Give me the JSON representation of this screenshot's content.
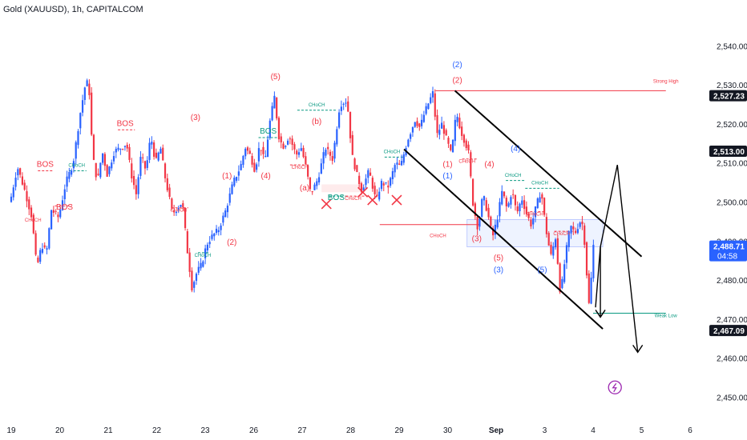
{
  "header": {
    "title": "Gold (XAUUSD), 1h, CAPITALCOM"
  },
  "chart_data": {
    "type": "candlestick",
    "symbol": "Gold (XAUUSD)",
    "interval": "1h",
    "source": "CAPITALCOM",
    "ylim": [
      2446,
      2546
    ],
    "y_ticks": [
      2450,
      2460,
      2470,
      2480,
      2490,
      2500,
      2510,
      2520,
      2530,
      2540
    ],
    "y_tick_labels": [
      "2,450.00",
      "2,460.00",
      "2,470.00",
      "2,480.00",
      "2,490.00",
      "2,500.00",
      "2,510.00",
      "2,520.00",
      "2,530.00",
      "2,540.00"
    ],
    "x_tick_labels": [
      {
        "label": "19",
        "x": 0.0
      },
      {
        "label": "20",
        "x": 1.0
      },
      {
        "label": "21",
        "x": 2.0
      },
      {
        "label": "22",
        "x": 3.0
      },
      {
        "label": "23",
        "x": 4.0
      },
      {
        "label": "26",
        "x": 5.0
      },
      {
        "label": "27",
        "x": 6.0
      },
      {
        "label": "28",
        "x": 7.0
      },
      {
        "label": "29",
        "x": 8.0
      },
      {
        "label": "30",
        "x": 9.0
      },
      {
        "label": "Sep",
        "x": 10.0
      },
      {
        "label": "3",
        "x": 11.0
      },
      {
        "label": "4",
        "x": 12.0
      },
      {
        "label": "5",
        "x": 13.0
      },
      {
        "label": "6",
        "x": 14.0
      }
    ],
    "price_badges": [
      {
        "label": "2,527.23",
        "price": 2527.23,
        "style": "dark"
      },
      {
        "label": "2,513.00",
        "price": 2513.0,
        "style": "dark"
      },
      {
        "label": "2,488.71",
        "price": 2488.71,
        "style": "blue",
        "countdown": "04:58"
      },
      {
        "label": "2,467.09",
        "price": 2467.09,
        "style": "dark"
      }
    ],
    "colors": {
      "up": "#2962ff",
      "down": "#f23645",
      "structure": "#f23645",
      "bos": "#089981",
      "channel": "#000000"
    },
    "price_path": [
      [
        0.0,
        2500
      ],
      [
        0.15,
        2509
      ],
      [
        0.3,
        2503
      ],
      [
        0.45,
        2496
      ],
      [
        0.55,
        2483
      ],
      [
        0.65,
        2489
      ],
      [
        0.75,
        2487
      ],
      [
        0.85,
        2498
      ],
      [
        1.0,
        2496
      ],
      [
        1.15,
        2505
      ],
      [
        1.3,
        2510
      ],
      [
        1.45,
        2523
      ],
      [
        1.55,
        2530
      ],
      [
        1.62,
        2531
      ],
      [
        1.7,
        2512
      ],
      [
        1.8,
        2505
      ],
      [
        1.9,
        2513
      ],
      [
        2.0,
        2507
      ],
      [
        2.15,
        2513
      ],
      [
        2.3,
        2514
      ],
      [
        2.4,
        2515
      ],
      [
        2.5,
        2507
      ],
      [
        2.6,
        2502
      ],
      [
        2.7,
        2512
      ],
      [
        2.8,
        2508
      ],
      [
        2.9,
        2517
      ],
      [
        3.0,
        2510
      ],
      [
        3.1,
        2514
      ],
      [
        3.2,
        2506
      ],
      [
        3.35,
        2497
      ],
      [
        3.55,
        2500
      ],
      [
        3.65,
        2488
      ],
      [
        3.75,
        2478
      ],
      [
        3.85,
        2482
      ],
      [
        3.95,
        2484
      ],
      [
        4.05,
        2489
      ],
      [
        4.15,
        2491
      ],
      [
        4.3,
        2493
      ],
      [
        4.45,
        2498
      ],
      [
        4.6,
        2505
      ],
      [
        4.75,
        2509
      ],
      [
        4.85,
        2514
      ],
      [
        4.95,
        2512
      ],
      [
        5.05,
        2508
      ],
      [
        5.15,
        2515
      ],
      [
        5.25,
        2510
      ],
      [
        5.35,
        2520
      ],
      [
        5.45,
        2527
      ],
      [
        5.55,
        2516
      ],
      [
        5.65,
        2514
      ],
      [
        5.75,
        2517
      ],
      [
        5.9,
        2512
      ],
      [
        6.0,
        2514
      ],
      [
        6.1,
        2509
      ],
      [
        6.2,
        2502
      ],
      [
        6.35,
        2506
      ],
      [
        6.5,
        2514
      ],
      [
        6.65,
        2511
      ],
      [
        6.8,
        2525
      ],
      [
        6.95,
        2526
      ],
      [
        7.05,
        2512
      ],
      [
        7.15,
        2507
      ],
      [
        7.25,
        2503
      ],
      [
        7.4,
        2508
      ],
      [
        7.55,
        2500
      ],
      [
        7.65,
        2505
      ],
      [
        7.8,
        2504
      ],
      [
        7.95,
        2510
      ],
      [
        8.05,
        2509
      ],
      [
        8.2,
        2516
      ],
      [
        8.35,
        2521
      ],
      [
        8.45,
        2519
      ],
      [
        8.55,
        2523
      ],
      [
        8.65,
        2526
      ],
      [
        8.72,
        2528
      ],
      [
        8.8,
        2517
      ],
      [
        8.9,
        2520
      ],
      [
        9.0,
        2516
      ],
      [
        9.1,
        2512
      ],
      [
        9.2,
        2523
      ],
      [
        9.3,
        2518
      ],
      [
        9.45,
        2513
      ],
      [
        9.55,
        2499
      ],
      [
        9.65,
        2493
      ],
      [
        9.75,
        2502
      ],
      [
        9.85,
        2497
      ],
      [
        9.95,
        2491
      ],
      [
        10.05,
        2496
      ],
      [
        10.15,
        2503
      ],
      [
        10.25,
        2498
      ],
      [
        10.35,
        2503
      ],
      [
        10.45,
        2497
      ],
      [
        10.55,
        2501
      ],
      [
        10.65,
        2497
      ],
      [
        10.75,
        2494
      ],
      [
        10.85,
        2499
      ],
      [
        10.95,
        2503
      ],
      [
        11.05,
        2493
      ],
      [
        11.15,
        2486
      ],
      [
        11.25,
        2491
      ],
      [
        11.35,
        2476
      ],
      [
        11.45,
        2486
      ],
      [
        11.55,
        2494
      ],
      [
        11.65,
        2492
      ],
      [
        11.75,
        2495
      ],
      [
        11.82,
        2494
      ],
      [
        11.88,
        2484
      ],
      [
        11.93,
        2473
      ],
      [
        11.97,
        2478
      ],
      [
        12.03,
        2489
      ]
    ],
    "annotations": [
      {
        "text": "(5)",
        "x": 5.45,
        "y": 2531.5,
        "color": "#f23645"
      },
      {
        "text": "(3)",
        "x": 3.8,
        "y": 2521,
        "color": "#f23645"
      },
      {
        "text": "(1)",
        "x": 4.45,
        "y": 2506,
        "color": "#f23645"
      },
      {
        "text": "(2)",
        "x": 4.55,
        "y": 2489,
        "color": "#f23645"
      },
      {
        "text": "(b)",
        "x": 6.3,
        "y": 2520,
        "color": "#f23645"
      },
      {
        "text": "(4)",
        "x": 5.25,
        "y": 2506,
        "color": "#f23645"
      },
      {
        "text": "(a)",
        "x": 6.05,
        "y": 2503,
        "color": "#f23645"
      },
      {
        "text": "(2)",
        "x": 9.2,
        "y": 2534.5,
        "color": "#2962ff"
      },
      {
        "text": "(2)",
        "x": 9.2,
        "y": 2530.5,
        "color": "#f23645"
      },
      {
        "text": "(4)",
        "x": 10.4,
        "y": 2513,
        "color": "#2962ff"
      },
      {
        "text": "(1)",
        "x": 9.0,
        "y": 2509,
        "color": "#f23645"
      },
      {
        "text": "(1)",
        "x": 9.0,
        "y": 2506,
        "color": "#2962ff"
      },
      {
        "text": "(4)",
        "x": 9.86,
        "y": 2509,
        "color": "#f23645"
      },
      {
        "text": "(3)",
        "x": 9.6,
        "y": 2490,
        "color": "#f23645"
      },
      {
        "text": "(5)",
        "x": 10.05,
        "y": 2485,
        "color": "#f23645"
      },
      {
        "text": "(3)",
        "x": 10.05,
        "y": 2482,
        "color": "#2962ff"
      },
      {
        "text": "(5)",
        "x": 10.95,
        "y": 2482,
        "color": "#2962ff"
      },
      {
        "text": "CHoCH",
        "x": 8.8,
        "y": 2491,
        "color": "#f23645"
      },
      {
        "text": "Strong High",
        "x": 13.5,
        "y": 2530.5,
        "color": "#f23645"
      },
      {
        "text": "Weak Low",
        "x": 13.5,
        "y": 2470.5,
        "color": "#089981"
      },
      {
        "text": "BOS",
        "x": 0.7,
        "y": 2509,
        "color": "#f23645"
      },
      {
        "text": "CHoCH",
        "x": 1.35,
        "y": 2509,
        "color": "#089981"
      },
      {
        "text": "BOS",
        "x": 1.1,
        "y": 2498,
        "color": "#f23645"
      },
      {
        "text": "CHoCH",
        "x": 0.45,
        "y": 2495,
        "color": "#f23645"
      },
      {
        "text": "BOS",
        "x": 2.35,
        "y": 2519.5,
        "color": "#f23645"
      },
      {
        "text": "CHoCH",
        "x": 3.45,
        "y": 2497.5,
        "color": "#f23645"
      },
      {
        "text": "CHoCH",
        "x": 3.95,
        "y": 2486,
        "color": "#089981"
      },
      {
        "text": "BOS",
        "x": 5.3,
        "y": 2517.5,
        "color": "#089981"
      },
      {
        "text": "CHoCH",
        "x": 6.3,
        "y": 2524.5,
        "color": "#089981"
      },
      {
        "text": "CHoCH",
        "x": 5.95,
        "y": 2508.5,
        "color": "#f23645"
      },
      {
        "text": "BOS",
        "x": 6.7,
        "y": 2500.5,
        "color": "#089981"
      },
      {
        "text": "CHoCH",
        "x": 7.05,
        "y": 2500.5,
        "color": "#f23645"
      },
      {
        "text": "CHoCH",
        "x": 7.85,
        "y": 2512.5,
        "color": "#089981"
      },
      {
        "text": "CHoCH",
        "x": 9.4,
        "y": 2510,
        "color": "#f23645"
      },
      {
        "text": "CHoCH",
        "x": 10.35,
        "y": 2506.5,
        "color": "#089981"
      },
      {
        "text": "CHoCH",
        "x": 10.9,
        "y": 2504.5,
        "color": "#089981"
      },
      {
        "text": "CHoCH",
        "x": 10.8,
        "y": 2496.5,
        "color": "#f23645"
      },
      {
        "text": "CHoCH",
        "x": 11.35,
        "y": 2491.5,
        "color": "#f23645"
      }
    ],
    "structure_lines": [
      {
        "x1": 8.75,
        "x2": 13.5,
        "y": 2528.5,
        "color": "#f23645",
        "dash": false
      },
      {
        "x1": 7.6,
        "x2": 9.65,
        "y": 2494.2,
        "color": "#f23645",
        "dash": false
      },
      {
        "x1": 12.0,
        "x2": 13.5,
        "y": 2471.5,
        "color": "#089981",
        "dash": false
      },
      {
        "x1": 0.55,
        "x2": 0.85,
        "y": 2508,
        "color": "#f23645",
        "dash": true
      },
      {
        "x1": 1.2,
        "x2": 1.55,
        "y": 2508,
        "color": "#089981",
        "dash": true
      },
      {
        "x1": 0.9,
        "x2": 1.25,
        "y": 2499,
        "color": "#f23645",
        "dash": true
      },
      {
        "x1": 2.2,
        "x2": 2.55,
        "y": 2518.5,
        "color": "#f23645",
        "dash": true
      },
      {
        "x1": 3.3,
        "x2": 3.65,
        "y": 2498.5,
        "color": "#f23645",
        "dash": true
      },
      {
        "x1": 3.85,
        "x2": 4.1,
        "y": 2487,
        "color": "#089981",
        "dash": true
      },
      {
        "x1": 5.1,
        "x2": 5.5,
        "y": 2516.5,
        "color": "#089981",
        "dash": true
      },
      {
        "x1": 5.9,
        "x2": 6.7,
        "y": 2523.5,
        "color": "#089981",
        "dash": true
      },
      {
        "x1": 5.75,
        "x2": 6.15,
        "y": 2509.5,
        "color": "#f23645",
        "dash": true
      },
      {
        "x1": 6.55,
        "x2": 6.9,
        "y": 2501.5,
        "color": "#089981",
        "dash": true
      },
      {
        "x1": 6.9,
        "x2": 7.3,
        "y": 2501.5,
        "color": "#f23645",
        "dash": true
      },
      {
        "x1": 7.7,
        "x2": 8.1,
        "y": 2511.5,
        "color": "#089981",
        "dash": true
      },
      {
        "x1": 9.3,
        "x2": 9.6,
        "y": 2511,
        "color": "#f23645",
        "dash": true
      },
      {
        "x1": 10.2,
        "x2": 10.6,
        "y": 2505.5,
        "color": "#089981",
        "dash": true
      },
      {
        "x1": 10.6,
        "x2": 11.3,
        "y": 2503.5,
        "color": "#089981",
        "dash": true
      },
      {
        "x1": 10.7,
        "x2": 11.0,
        "y": 2497.5,
        "color": "#f23645",
        "dash": true
      },
      {
        "x1": 11.2,
        "x2": 11.6,
        "y": 2492.5,
        "color": "#f23645",
        "dash": true
      }
    ],
    "zones": [
      {
        "x1": 9.4,
        "x2": 12.2,
        "y1": 2488.5,
        "y2": 2495.5,
        "fill": "rgba(41,98,255,0.08)",
        "stroke": "#b2c0ff"
      },
      {
        "x1": 6.4,
        "x2": 7.3,
        "y1": 2502.5,
        "y2": 2504.5,
        "fill": "rgba(242,54,69,0.10)",
        "stroke": "none"
      }
    ],
    "x_marks": [
      {
        "x": 6.5,
        "y": 2499.5
      },
      {
        "x": 7.25,
        "y": 2502.5
      },
      {
        "x": 7.45,
        "y": 2500.5
      },
      {
        "x": 7.95,
        "y": 2500.5
      }
    ],
    "channel_lines": [
      {
        "x1": 9.15,
        "y1": 2528.5,
        "x2": 13.0,
        "y2": 2486.0
      },
      {
        "x1": 8.1,
        "y1": 2513.5,
        "x2": 12.2,
        "y2": 2467.5
      }
    ],
    "projection_lines": [
      {
        "points": [
          [
            12.05,
            2473
          ],
          [
            12.15,
            2488.5
          ],
          [
            12.5,
            2509.5
          ],
          [
            12.92,
            2461.5
          ]
        ]
      },
      {
        "points": [
          [
            12.15,
            2488.5
          ],
          [
            12.15,
            2470.5
          ]
        ]
      }
    ],
    "arrow_heads": [
      {
        "x": 12.15,
        "y": 2470.5
      },
      {
        "x": 12.92,
        "y": 2461.5
      }
    ],
    "lightning_badge": {
      "x": 12.45,
      "y": 2452.5
    }
  }
}
